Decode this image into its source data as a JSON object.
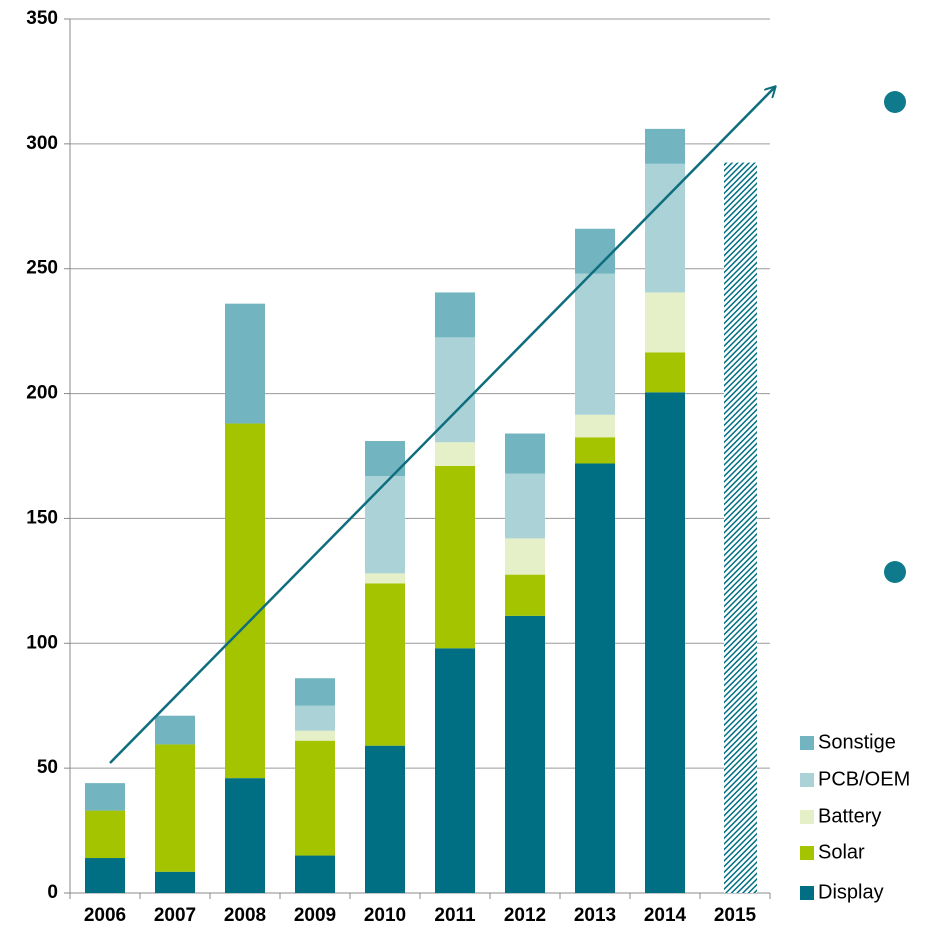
{
  "chart_data": {
    "type": "stacked_bar",
    "categories": [
      "2006",
      "2007",
      "2008",
      "2009",
      "2010",
      "2011",
      "2012",
      "2013",
      "2014",
      "2015"
    ],
    "series": [
      {
        "name": "Display",
        "color": "#006f84",
        "values": [
          14,
          8.5,
          46,
          15,
          59,
          98,
          111,
          172,
          200.5,
          null
        ]
      },
      {
        "name": "Solar",
        "color": "#a5c400",
        "values": [
          19,
          51,
          142,
          46,
          65,
          73,
          16.5,
          10.5,
          16,
          null
        ]
      },
      {
        "name": "Battery",
        "color": "#e6f0c8",
        "values": [
          0,
          0,
          0,
          4,
          4,
          9.5,
          14.5,
          9,
          24,
          null
        ]
      },
      {
        "name": "PCB/OEM",
        "color": "#abd3d7",
        "values": [
          0,
          0,
          0,
          10,
          39,
          42,
          26,
          56.5,
          51.5,
          null
        ]
      },
      {
        "name": "Sonstige",
        "color": "#72b4bf",
        "values": [
          11,
          11.5,
          48,
          11,
          14,
          18,
          16,
          18,
          14,
          null
        ]
      }
    ],
    "forecast": {
      "color": "#006f84",
      "values": [
        null,
        null,
        null,
        null,
        null,
        null,
        null,
        null,
        null,
        292.5
      ]
    },
    "ylim": [
      0,
      350
    ],
    "yticks": [
      0,
      50,
      100,
      150,
      200,
      250,
      300,
      350
    ],
    "grid": true
  }
}
